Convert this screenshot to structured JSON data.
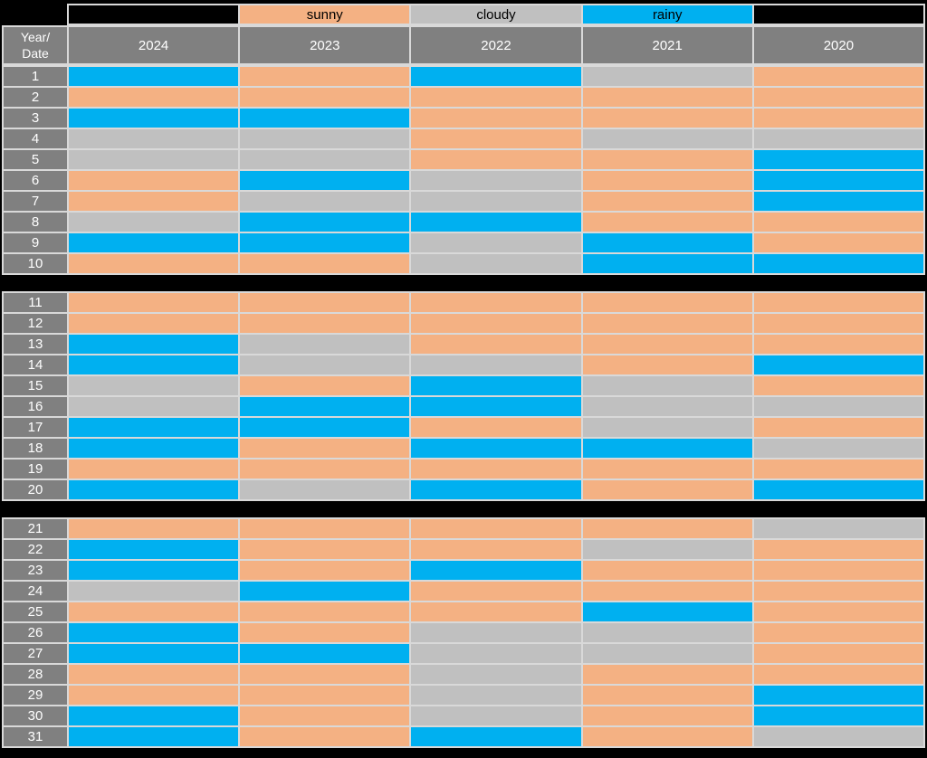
{
  "colors": {
    "sunny": "#F4B183",
    "cloudy": "#C0C0C0",
    "rainy": "#00B0F0",
    "header_bg": "#808080",
    "header_text": "#FFFFFF",
    "legend_text": "#000000",
    "gridline": "#D9D9D9",
    "background": "#000000"
  },
  "legend": {
    "items": [
      {
        "label": "",
        "key": "blank-left",
        "color": "#000000"
      },
      {
        "label": "sunny",
        "key": "sunny",
        "color": "#F4B183"
      },
      {
        "label": "cloudy",
        "key": "cloudy",
        "color": "#C0C0C0"
      },
      {
        "label": "rainy",
        "key": "rainy",
        "color": "#00B0F0"
      },
      {
        "label": "",
        "key": "blank-right",
        "color": "#000000"
      }
    ]
  },
  "header": {
    "corner_label": "Year/\nDate",
    "years": [
      "2024",
      "2023",
      "2022",
      "2021",
      "2020"
    ]
  },
  "chart_data": {
    "type": "heatmap",
    "title": "",
    "xlabel": "Year",
    "ylabel": "Date",
    "columns": [
      "2024",
      "2023",
      "2022",
      "2021",
      "2020"
    ],
    "legend_entries": [
      "sunny",
      "cloudy",
      "rainy"
    ],
    "row_groups": [
      [
        1,
        10
      ],
      [
        11,
        20
      ],
      [
        21,
        31
      ]
    ],
    "values": [
      [
        "rainy",
        "sunny",
        "rainy",
        "cloudy",
        "sunny"
      ],
      [
        "sunny",
        "sunny",
        "sunny",
        "sunny",
        "sunny"
      ],
      [
        "rainy",
        "rainy",
        "sunny",
        "sunny",
        "sunny"
      ],
      [
        "cloudy",
        "cloudy",
        "sunny",
        "cloudy",
        "cloudy"
      ],
      [
        "cloudy",
        "cloudy",
        "sunny",
        "sunny",
        "rainy"
      ],
      [
        "sunny",
        "rainy",
        "cloudy",
        "sunny",
        "rainy"
      ],
      [
        "sunny",
        "cloudy",
        "cloudy",
        "sunny",
        "rainy"
      ],
      [
        "cloudy",
        "rainy",
        "rainy",
        "sunny",
        "sunny"
      ],
      [
        "rainy",
        "rainy",
        "cloudy",
        "rainy",
        "sunny"
      ],
      [
        "sunny",
        "sunny",
        "cloudy",
        "rainy",
        "rainy"
      ],
      [
        "sunny",
        "sunny",
        "sunny",
        "sunny",
        "sunny"
      ],
      [
        "sunny",
        "sunny",
        "sunny",
        "sunny",
        "sunny"
      ],
      [
        "rainy",
        "cloudy",
        "sunny",
        "sunny",
        "sunny"
      ],
      [
        "rainy",
        "cloudy",
        "cloudy",
        "sunny",
        "rainy"
      ],
      [
        "cloudy",
        "sunny",
        "rainy",
        "cloudy",
        "sunny"
      ],
      [
        "cloudy",
        "rainy",
        "rainy",
        "cloudy",
        "cloudy"
      ],
      [
        "rainy",
        "rainy",
        "sunny",
        "cloudy",
        "sunny"
      ],
      [
        "rainy",
        "sunny",
        "rainy",
        "rainy",
        "cloudy"
      ],
      [
        "sunny",
        "sunny",
        "sunny",
        "sunny",
        "sunny"
      ],
      [
        "rainy",
        "cloudy",
        "rainy",
        "sunny",
        "rainy"
      ],
      [
        "sunny",
        "sunny",
        "sunny",
        "sunny",
        "cloudy"
      ],
      [
        "rainy",
        "sunny",
        "sunny",
        "cloudy",
        "sunny"
      ],
      [
        "rainy",
        "sunny",
        "rainy",
        "sunny",
        "sunny"
      ],
      [
        "cloudy",
        "rainy",
        "sunny",
        "sunny",
        "sunny"
      ],
      [
        "sunny",
        "sunny",
        "sunny",
        "rainy",
        "sunny"
      ],
      [
        "rainy",
        "sunny",
        "cloudy",
        "cloudy",
        "sunny"
      ],
      [
        "rainy",
        "rainy",
        "cloudy",
        "cloudy",
        "sunny"
      ],
      [
        "sunny",
        "sunny",
        "cloudy",
        "sunny",
        "sunny"
      ],
      [
        "sunny",
        "sunny",
        "cloudy",
        "sunny",
        "rainy"
      ],
      [
        "rainy",
        "sunny",
        "cloudy",
        "sunny",
        "rainy"
      ],
      [
        "rainy",
        "sunny",
        "rainy",
        "sunny",
        "cloudy"
      ]
    ]
  }
}
